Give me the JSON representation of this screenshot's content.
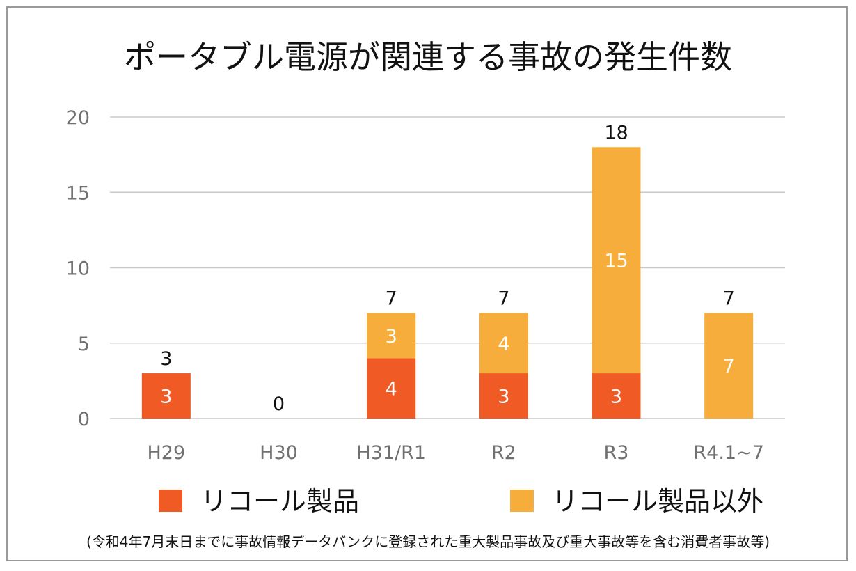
{
  "chart_data": {
    "type": "bar",
    "stacked": true,
    "title": "ポータブル電源が関連する事故の発生件数",
    "categories": [
      "H29",
      "H30",
      "H31/R1",
      "R2",
      "R3",
      "R4.1~7"
    ],
    "series": [
      {
        "name": "リコール製品",
        "color": "#F05A24",
        "values": [
          3,
          0,
          4,
          3,
          3,
          0
        ]
      },
      {
        "name": "リコール製品以外",
        "color": "#F7AD3B",
        "values": [
          0,
          0,
          3,
          4,
          15,
          7
        ]
      }
    ],
    "totals": [
      3,
      0,
      7,
      7,
      18,
      7
    ],
    "ylim": [
      0,
      20
    ],
    "yticks": [
      0,
      5,
      10,
      15,
      20
    ],
    "grid": true,
    "legend_position": "bottom",
    "footnote": "(令和4年7月末日までに事故情報データバンクに登録された重大製品事故及び重大事故等を含む消費者事故等)"
  }
}
